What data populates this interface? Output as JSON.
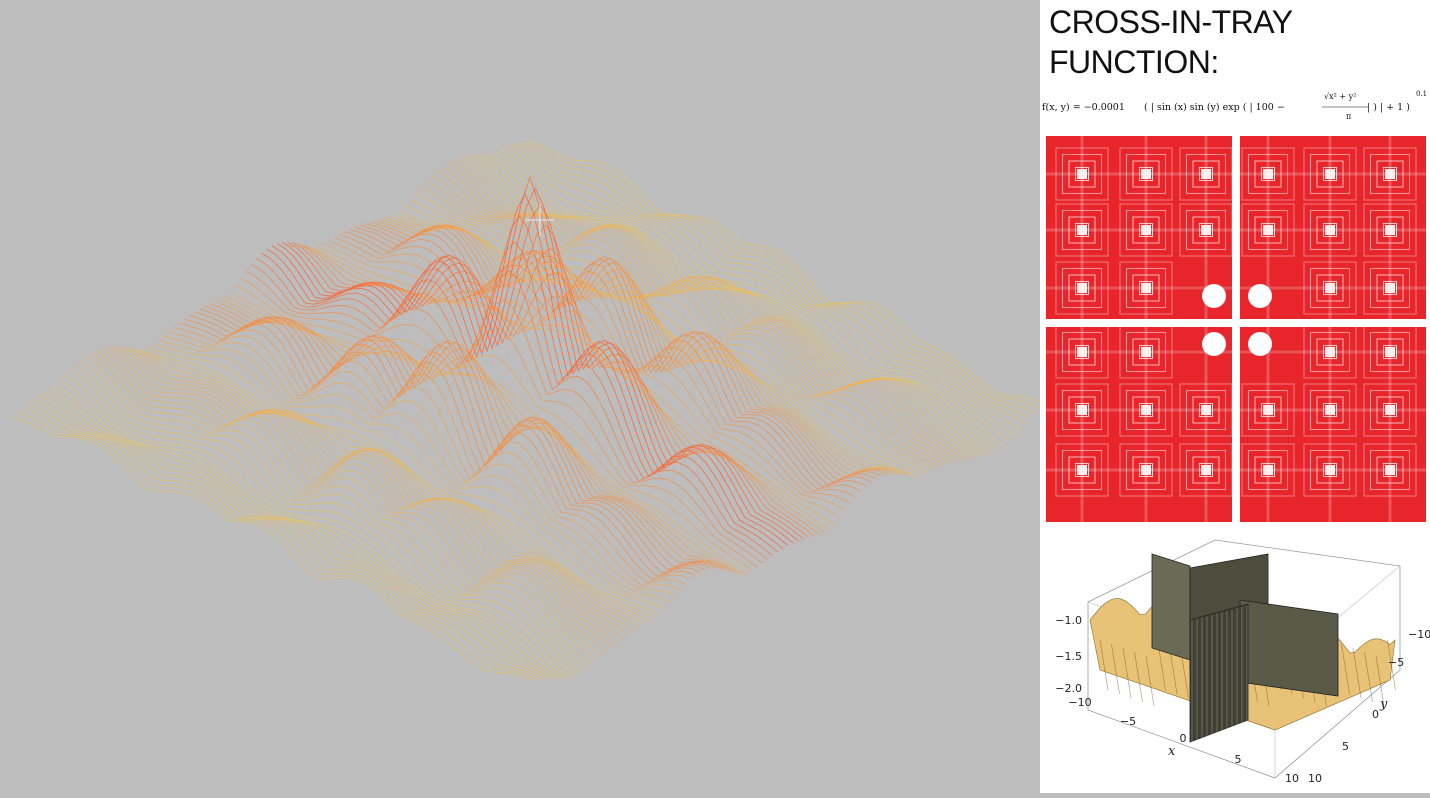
{
  "panel": {
    "title": "CROSS-IN-TRAY FUNCTION:",
    "formula": {
      "lhs": "f(x, y) = −0.0001",
      "body": "( | sin (x) sin (y) exp ( | 100 −",
      "sqrt_term": "√x² + y²",
      "denominator": "π",
      "tail": "| ) | + 1 )",
      "exponent": "0.1"
    }
  },
  "colors": {
    "background": "#bdbdbd",
    "panel_background": "#ffffff",
    "contour_line": "#e8252b",
    "surface_gold": "#e8c277",
    "mesh_low": "#ffe821",
    "mesh_mid": "#ff3d14",
    "mesh_high": "#3b55c8",
    "mesh_faded": "#f0a0a0"
  },
  "chart_data": [
    {
      "type": "3d-mesh",
      "function": "cross-in-tray",
      "domain_x": [
        -10,
        10
      ],
      "domain_y": [
        -10,
        10
      ],
      "colormap": [
        "#ffe821",
        "#ff3d14",
        "#3b55c8"
      ]
    },
    {
      "type": "contour",
      "function": "cross-in-tray",
      "domain_x": [
        -10,
        10
      ],
      "domain_y": [
        -10,
        10
      ],
      "line_color": "#e8252b"
    },
    {
      "type": "surface",
      "function": "cross-in-tray",
      "xlabel": "x",
      "ylabel": "y",
      "x_ticks": [
        "−10",
        "−5",
        "0",
        "5",
        "10"
      ],
      "y_ticks": [
        "−10",
        "−5",
        "0",
        "5",
        "10"
      ],
      "z_ticks": [
        "−1.0",
        "−1.5",
        "−2.0"
      ],
      "zlim": [
        -2.1,
        -0.9
      ]
    }
  ]
}
